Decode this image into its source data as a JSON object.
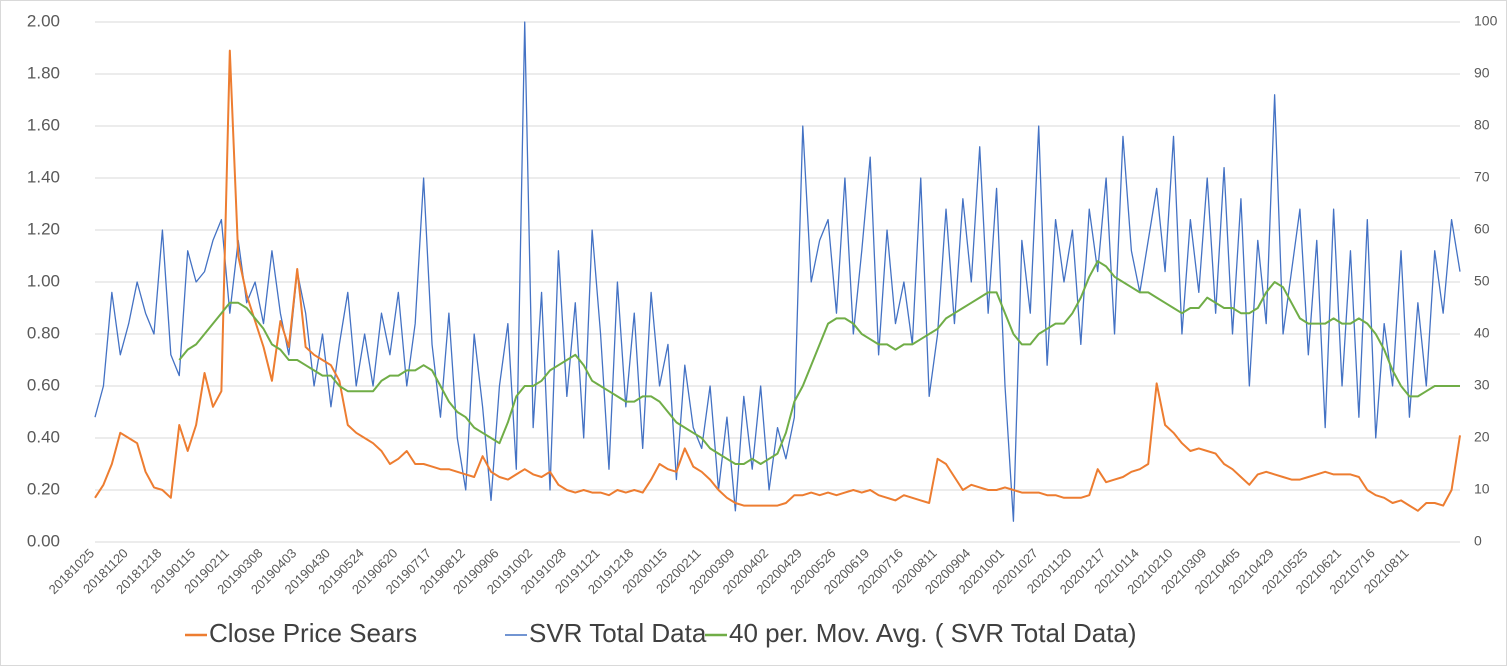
{
  "chart_data": {
    "type": "line",
    "categories": [
      "20181025",
      null,
      null,
      null,
      "20181120",
      null,
      null,
      null,
      "20181218",
      null,
      null,
      null,
      "20190115",
      null,
      null,
      null,
      "20190211",
      null,
      null,
      null,
      "20190308",
      null,
      null,
      null,
      "20190403",
      null,
      null,
      null,
      "20190430",
      null,
      null,
      null,
      "20190524",
      null,
      null,
      null,
      "20190620",
      null,
      null,
      null,
      "20190717",
      null,
      null,
      null,
      "20190812",
      null,
      null,
      null,
      "20190906",
      null,
      null,
      null,
      "20191002",
      null,
      null,
      null,
      "20191028",
      null,
      null,
      null,
      "20191121",
      null,
      null,
      null,
      "20191218",
      null,
      null,
      null,
      "20200115",
      null,
      null,
      null,
      "20200211",
      null,
      null,
      null,
      "20200309",
      null,
      null,
      null,
      "20200402",
      null,
      null,
      null,
      "20200429",
      null,
      null,
      null,
      "20200526",
      null,
      null,
      null,
      "20200619",
      null,
      null,
      null,
      "20200716",
      null,
      null,
      null,
      "20200811",
      null,
      null,
      null,
      "20200904",
      null,
      null,
      null,
      "20201001",
      null,
      null,
      null,
      "20201027",
      null,
      null,
      null,
      "20201120",
      null,
      null,
      null,
      "20201217",
      null,
      null,
      null,
      "20210114",
      null,
      null,
      null,
      "20210210",
      null,
      null,
      null,
      "20210309",
      null,
      null,
      null,
      "20210405",
      null,
      null,
      null,
      "20210429",
      null,
      null,
      null,
      "20210525",
      null,
      null,
      null,
      "20210621",
      null,
      null,
      null,
      "20210716",
      null,
      null,
      null,
      "20210811",
      null,
      null,
      null,
      null,
      null,
      null
    ],
    "series": [
      {
        "name": "Close Price Sears",
        "color": "#ed7d31",
        "axis": "y",
        "values": [
          0.17,
          0.22,
          0.3,
          0.42,
          0.4,
          0.38,
          0.27,
          0.21,
          0.2,
          0.17,
          0.45,
          0.35,
          0.45,
          0.65,
          0.52,
          0.58,
          1.89,
          1.1,
          0.95,
          0.85,
          0.75,
          0.62,
          0.85,
          0.75,
          1.05,
          0.75,
          0.72,
          0.7,
          0.68,
          0.62,
          0.45,
          0.42,
          0.4,
          0.38,
          0.35,
          0.3,
          0.32,
          0.35,
          0.3,
          0.3,
          0.29,
          0.28,
          0.28,
          0.27,
          0.26,
          0.25,
          0.33,
          0.27,
          0.25,
          0.24,
          0.26,
          0.28,
          0.26,
          0.25,
          0.27,
          0.22,
          0.2,
          0.19,
          0.2,
          0.19,
          0.19,
          0.18,
          0.2,
          0.19,
          0.2,
          0.19,
          0.24,
          0.3,
          0.28,
          0.27,
          0.36,
          0.29,
          0.27,
          0.24,
          0.2,
          0.17,
          0.15,
          0.14,
          0.14,
          0.14,
          0.14,
          0.14,
          0.15,
          0.18,
          0.18,
          0.19,
          0.18,
          0.19,
          0.18,
          0.19,
          0.2,
          0.19,
          0.2,
          0.18,
          0.17,
          0.16,
          0.18,
          0.17,
          0.16,
          0.15,
          0.32,
          0.3,
          0.25,
          0.2,
          0.22,
          0.21,
          0.2,
          0.2,
          0.21,
          0.2,
          0.19,
          0.19,
          0.19,
          0.18,
          0.18,
          0.17,
          0.17,
          0.17,
          0.18,
          0.28,
          0.23,
          0.24,
          0.25,
          0.27,
          0.28,
          0.3,
          0.61,
          0.45,
          0.42,
          0.38,
          0.35,
          0.36,
          0.35,
          0.34,
          0.3,
          0.28,
          0.25,
          0.22,
          0.26,
          0.27,
          0.26,
          0.25,
          0.24,
          0.24,
          0.25,
          0.26,
          0.27,
          0.26,
          0.26,
          0.26,
          0.25,
          0.2,
          0.18,
          0.17,
          0.15,
          0.16,
          0.14,
          0.12,
          0.15,
          0.15,
          0.14,
          0.2,
          0.41
        ]
      },
      {
        "name": "SVR Total Data",
        "color": "#4472c4",
        "axis": "y2",
        "values": [
          24,
          30,
          48,
          36,
          42,
          50,
          44,
          40,
          60,
          36,
          32,
          56,
          50,
          52,
          58,
          62,
          44,
          58,
          46,
          50,
          42,
          56,
          44,
          36,
          52,
          44,
          30,
          40,
          26,
          38,
          48,
          30,
          40,
          30,
          44,
          36,
          48,
          30,
          42,
          70,
          38,
          24,
          44,
          20,
          10,
          40,
          26,
          8,
          30,
          42,
          14,
          100,
          22,
          48,
          10,
          56,
          28,
          46,
          20,
          60,
          40,
          14,
          50,
          26,
          44,
          18,
          48,
          30,
          38,
          12,
          34,
          22,
          18,
          30,
          10,
          24,
          6,
          28,
          14,
          30,
          10,
          22,
          16,
          24,
          80,
          50,
          58,
          62,
          44,
          70,
          40,
          56,
          74,
          36,
          60,
          42,
          50,
          38,
          70,
          28,
          40,
          64,
          42,
          66,
          50,
          76,
          44,
          68,
          30,
          4,
          58,
          44,
          80,
          34,
          62,
          50,
          60,
          38,
          64,
          52,
          70,
          40,
          78,
          56,
          48,
          58,
          68,
          52,
          78,
          40,
          62,
          48,
          70,
          44,
          72,
          40,
          66,
          30,
          58,
          42,
          86,
          40,
          52,
          64,
          36,
          58,
          22,
          64,
          30,
          56,
          24,
          62,
          20,
          42,
          30,
          56,
          24,
          46,
          30,
          56,
          44,
          62,
          52
        ]
      },
      {
        "name": "40 per. Mov. Avg. ( SVR Total Data)",
        "color": "#70ad47",
        "axis": "y2",
        "values": [
          null,
          null,
          null,
          null,
          null,
          null,
          null,
          null,
          null,
          null,
          35,
          37,
          38,
          40,
          42,
          44,
          46,
          46,
          45,
          43,
          41,
          38,
          37,
          35,
          35,
          34,
          33,
          32,
          32,
          30,
          29,
          29,
          29,
          29,
          31,
          32,
          32,
          33,
          33,
          34,
          33,
          30,
          27,
          25,
          24,
          22,
          21,
          20,
          19,
          23,
          28,
          30,
          30,
          31,
          33,
          34,
          35,
          36,
          34,
          31,
          30,
          29,
          28,
          27,
          27,
          28,
          28,
          27,
          25,
          23,
          22,
          21,
          20,
          18,
          17,
          16,
          15,
          15,
          16,
          15,
          16,
          17,
          21,
          27,
          30,
          34,
          38,
          42,
          43,
          43,
          42,
          40,
          39,
          38,
          38,
          37,
          38,
          38,
          39,
          40,
          41,
          43,
          44,
          45,
          46,
          47,
          48,
          48,
          44,
          40,
          38,
          38,
          40,
          41,
          42,
          42,
          44,
          47,
          51,
          54,
          53,
          51,
          50,
          49,
          48,
          48,
          47,
          46,
          45,
          44,
          45,
          45,
          47,
          46,
          45,
          45,
          44,
          44,
          45,
          48,
          50,
          49,
          46,
          43,
          42,
          42,
          42,
          43,
          42,
          42,
          43,
          42,
          40,
          37,
          33,
          30,
          28,
          28,
          29,
          30,
          30,
          30,
          30
        ]
      }
    ],
    "ylim": [
      0,
      2
    ],
    "yticks": [
      {
        "value": 0,
        "label": "0.00"
      },
      {
        "value": 0.2,
        "label": "0.20"
      },
      {
        "value": 0.4,
        "label": "0.40"
      },
      {
        "value": 0.6,
        "label": "0.60"
      },
      {
        "value": 0.8,
        "label": "0.80"
      },
      {
        "value": 1,
        "label": "1.00"
      },
      {
        "value": 1.2,
        "label": "1.20"
      },
      {
        "value": 1.4,
        "label": "1.40"
      },
      {
        "value": 1.6,
        "label": "1.60"
      },
      {
        "value": 1.8,
        "label": "1.80"
      },
      {
        "value": 2,
        "label": "2.00"
      }
    ],
    "y2lim": [
      0,
      100
    ],
    "y2ticks": [
      0,
      10,
      20,
      30,
      40,
      50,
      60,
      70,
      80,
      90,
      100
    ],
    "grid": true,
    "legend": "bottom"
  }
}
